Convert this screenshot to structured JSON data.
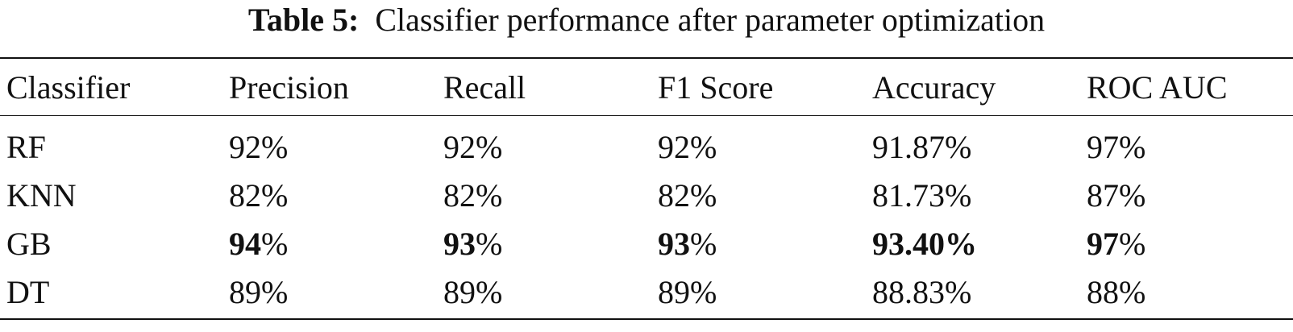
{
  "caption": {
    "label": "Table 5:",
    "text": "Classifier performance after parameter optimization"
  },
  "table": {
    "headers": [
      "Classifier",
      "Precision",
      "Recall",
      "F1 Score",
      "Accuracy",
      "ROC AUC"
    ],
    "rows": [
      {
        "classifier": "RF",
        "precision": {
          "num": "92",
          "unit": "%"
        },
        "recall": {
          "num": "92",
          "unit": "%"
        },
        "f1": {
          "num": "92",
          "unit": "%"
        },
        "accuracy": {
          "num": "91.87",
          "unit": "%"
        },
        "roc_auc": {
          "num": "97",
          "unit": "%"
        }
      },
      {
        "classifier": "KNN",
        "precision": {
          "num": "82",
          "unit": "%"
        },
        "recall": {
          "num": "82",
          "unit": "%"
        },
        "f1": {
          "num": "82",
          "unit": "%"
        },
        "accuracy": {
          "num": "81.73",
          "unit": "%"
        },
        "roc_auc": {
          "num": "87",
          "unit": "%"
        }
      },
      {
        "classifier": "GB",
        "precision": {
          "num": "94",
          "unit": "%"
        },
        "recall": {
          "num": "93",
          "unit": "%"
        },
        "f1": {
          "num": "93",
          "unit": "%"
        },
        "accuracy": {
          "num": "93.40%",
          "unit": ""
        },
        "roc_auc": {
          "num": "97",
          "unit": "%"
        }
      },
      {
        "classifier": "DT",
        "precision": {
          "num": "89",
          "unit": "%"
        },
        "recall": {
          "num": "89",
          "unit": "%"
        },
        "f1": {
          "num": "89",
          "unit": "%"
        },
        "accuracy": {
          "num": "88.83",
          "unit": "%"
        },
        "roc_auc": {
          "num": "88",
          "unit": "%"
        }
      }
    ]
  }
}
